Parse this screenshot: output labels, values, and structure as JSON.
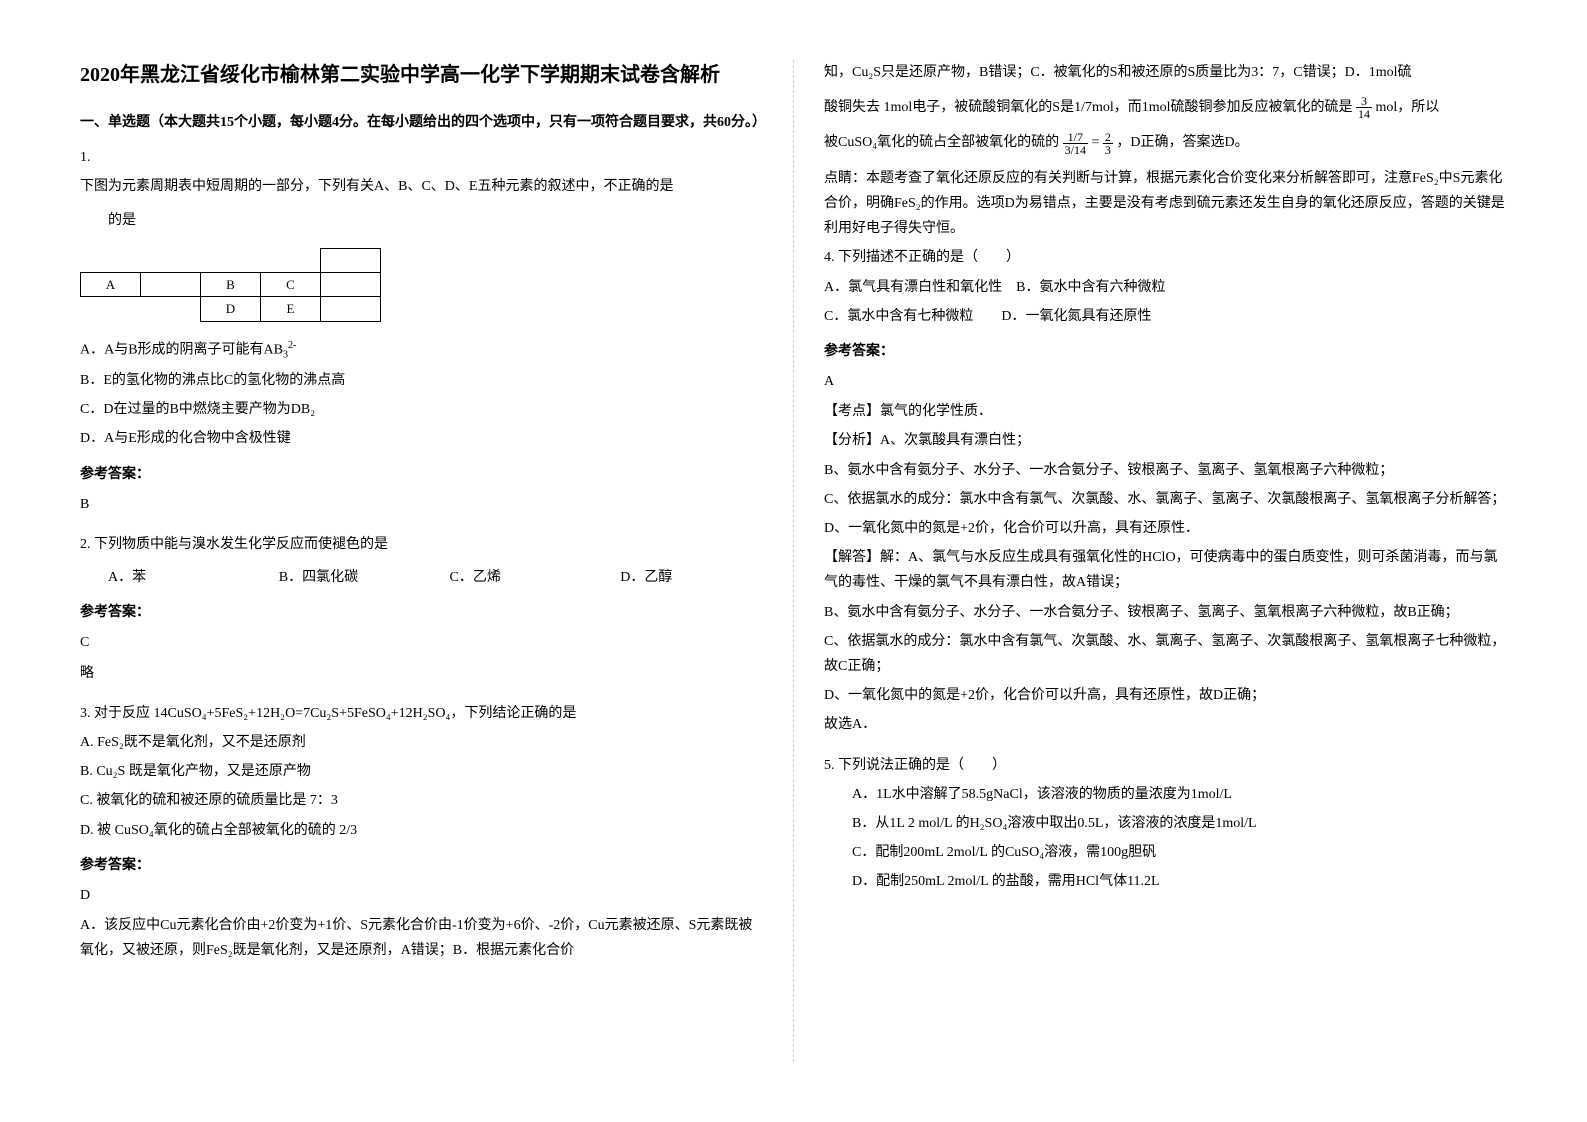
{
  "title": "2020年黑龙江省绥化市榆林第二实验中学高一化学下学期期末试卷含解析",
  "section1_heading": "一、单选题（本大题共15个小题，每小题4分。在每小题给出的四个选项中，只有一项符合题目要求，共60分。）",
  "q1": {
    "num": "1.",
    "text": "下图为元素周期表中短周期的一部分，下列有关A、B、C、D、E五种元素的叙述中，不正确的是",
    "table": {
      "r1c1": "A",
      "r1c3": "B",
      "r1c4": "C",
      "r2c3": "D",
      "r2c4": "E"
    },
    "optA": "A．A与B形成的阴离子可能有AB",
    "optA_sup": "2-",
    "optA_sub": "3",
    "optB": "B．E的氢化物的沸点比C的氢化物的沸点高",
    "optC": "C．D在过量的B中燃烧主要产物为DB₂",
    "optD": "D．A与E形成的化合物中含极性键",
    "answer_label": "参考答案：",
    "answer": "B"
  },
  "q2": {
    "num": "2. ",
    "text": "下列物质中能与溴水发生化学反应而使褪色的是",
    "optA": "A．苯",
    "optB": "B．四氯化碳",
    "optC": "C．乙烯",
    "optD": "D．乙醇",
    "answer_label": "参考答案：",
    "answer": "C",
    "note": "略"
  },
  "q3": {
    "num": "3. ",
    "text": "对于反应 14CuSO₄+5FeS₂+12H₂O=7Cu₂S+5FeSO₄+12H₂SO₄，下列结论正确的是",
    "optA": "A. FeS₂既不是氧化剂，又不是还原剂",
    "optB": "B. Cu₂S 既是氧化产物，又是还原产物",
    "optC": "C. 被氧化的硫和被还原的硫质量比是 7：3",
    "optD": "D. 被 CuSO₄氧化的硫占全部被氧化的硫的 2/3",
    "answer_label": "参考答案：",
    "answer": "D",
    "explain1": "A．该反应中Cu元素化合价由+2价变为+1价、S元素化合价由-1价变为+6价、-2价，Cu元素被还原、S元素既被氧化，又被还原，则FeS₂既是氧化剂，又是还原剂，A错误；B．根据元素化合价"
  },
  "right_col": {
    "cont1": "知，Cu₂S只是还原产物，B错误；C．被氧化的S和被还原的S质量比为3：7，C错误；D．1mol硫",
    "cont2_pre": "酸铜失去 1mol电子，被硫酸铜氧化的S是1/7mol，而1mol硫酸铜参加反应被氧化的硫是",
    "cont2_frac_num": "3",
    "cont2_frac_den": "14",
    "cont2_post": "mol，所以",
    "cont3_pre": "被CuSO₄氧化的硫占全部被氧化的硫的",
    "cont3_eq": "=",
    "cont3_frac1_num": "1/7",
    "cont3_frac1_den": "3/14",
    "cont3_frac2_num": "2",
    "cont3_frac2_den": "3",
    "cont3_post": "，D正确，答案选D。",
    "dianjing": "点睛：本题考查了氧化还原反应的有关判断与计算，根据元素化合价变化来分析解答即可，注意FeS₂中S元素化合价，明确FeS₂的作用。选项D为易错点，主要是没有考虑到硫元素还发生自身的氧化还原反应，答题的关键是利用好电子得失守恒。"
  },
  "q4": {
    "num": "4. ",
    "text": "下列描述不正确的是（　　）",
    "optA": "A．氯气具有漂白性和氧化性",
    "optB": "B．氨水中含有六种微粒",
    "optC": "C．氯水中含有七种微粒",
    "optD": "D．一氧化氮具有还原性",
    "answer_label": "参考答案：",
    "answer": "A",
    "kaodian": "【考点】氯气的化学性质．",
    "fenxi_label": "【分析】",
    "fenxiA": "A、次氯酸具有漂白性；",
    "fenxiB": "B、氨水中含有氨分子、水分子、一水合氨分子、铵根离子、氢离子、氢氧根离子六种微粒；",
    "fenxiC": "C、依据氯水的成分：氯水中含有氯气、次氯酸、水、氯离子、氢离子、次氯酸根离子、氢氧根离子分析解答；",
    "fenxiD": "D、一氧化氮中的氮是+2价，化合价可以升高，具有还原性．",
    "jieda_label": "【解答】",
    "jiedaA": "解：A、氯气与水反应生成具有强氧化性的HClO，可使病毒中的蛋白质变性，则可杀菌消毒，而与氯气的毒性、干燥的氯气不具有漂白性，故A错误；",
    "jiedaB": "B、氨水中含有氨分子、水分子、一水合氨分子、铵根离子、氢离子、氢氧根离子六种微粒，故B正确；",
    "jiedaC": "C、依据氯水的成分：氯水中含有氯气、次氯酸、水、氯离子、氢离子、次氯酸根离子、氢氧根离子七种微粒，故C正确；",
    "jiedaD": "D、一氧化氮中的氮是+2价，化合价可以升高，具有还原性，故D正确；",
    "guxuan": "故选A．"
  },
  "q5": {
    "num": "5. ",
    "text": "下列说法正确的是（　　）",
    "optA": "A．1L水中溶解了58.5gNaCl，该溶液的物质的量浓度为1mol/L",
    "optB": "B．从1L 2 mol/L 的H₂SO₄溶液中取出0.5L，该溶液的浓度是1mol/L",
    "optC": "C．配制200mL 2mol/L 的CuSO₄溶液，需100g胆矾",
    "optD": "D．配制250mL 2mol/L 的盐酸，需用HCl气体11.2L"
  }
}
